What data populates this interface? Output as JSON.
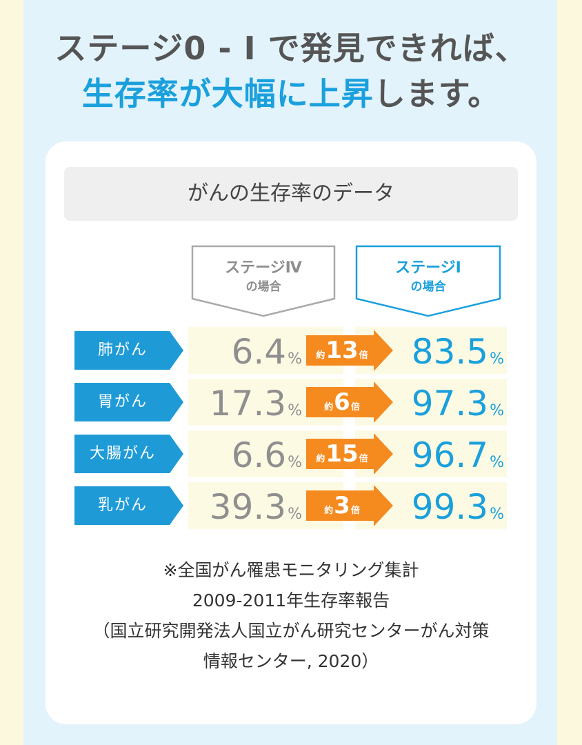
{
  "headline": {
    "line1": "ステージ0 - Ⅰ で発見できれば、",
    "line2_highlight": "生存率が大幅に上昇",
    "line2_rest": "します。"
  },
  "card_title": "がんの生存率のデータ",
  "columns": {
    "stage4": {
      "title": "ステージⅣ",
      "sub": "の場合"
    },
    "stage1": {
      "title": "ステージⅠ",
      "sub": "の場合"
    }
  },
  "chart_data": {
    "type": "table",
    "title": "がんの生存率のデータ",
    "unit": "%",
    "columns": [
      "ステージⅣの場合",
      "ステージⅠの場合"
    ],
    "rows": [
      {
        "name": "肺がん",
        "stage4": "6.4",
        "stage1": "83.5",
        "pre": "約",
        "ratio": "13",
        "post": "倍"
      },
      {
        "name": "胃がん",
        "stage4": "17.3",
        "stage1": "97.3",
        "pre": "約",
        "ratio": "6",
        "post": "倍"
      },
      {
        "name": "大腸がん",
        "stage4": "6.6",
        "stage1": "96.7",
        "pre": "約",
        "ratio": "15",
        "post": "倍"
      },
      {
        "name": "乳がん",
        "stage4": "39.3",
        "stage1": "99.3",
        "pre": "約",
        "ratio": "3",
        "post": "倍"
      }
    ]
  },
  "source_note": {
    "line1": "※全国がん罹患モニタリング集計",
    "line2": "2009-2011年生存率報告",
    "line3": "（国立研究開発法人国立がん研究センターがん対策",
    "line4": "情報センター, 2020）"
  },
  "colors": {
    "accent_blue": "#1aa0dc",
    "label_blue": "#1e9bd7",
    "arrow_orange": "#f58a1f",
    "gray_value": "#8f8f8f",
    "cell_bg": "#fdfae3",
    "panel_bg": "#e2f3fc"
  }
}
